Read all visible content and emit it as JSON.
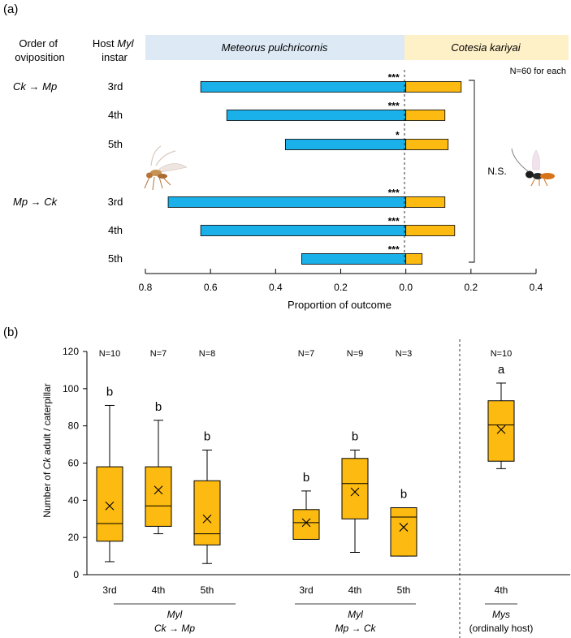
{
  "panel_a_label": "(a)",
  "panel_b_label": "(b)",
  "chart_data": [
    {
      "type": "bar",
      "orientation": "horizontal-diverging",
      "col_header_order": [
        "Order of",
        "oviposition"
      ],
      "col_header_instar": [
        "Host",
        "Myl",
        "instar"
      ],
      "species_left": "Meteorus pulchricornis",
      "species_right": "Cotesia kariyai",
      "species_left_color": "#DDEAF6",
      "species_right_color": "#FEF0C7",
      "sample_note": "N=60 for each",
      "xlabel": "Proportion of outcome",
      "xlim": [
        -0.8,
        0.4
      ],
      "xticks": [
        -0.8,
        -0.6,
        -0.4,
        -0.2,
        0.0,
        0.2,
        0.4
      ],
      "xtick_labels": [
        "0.8",
        "0.6",
        "0.4",
        "0.2",
        "0.0",
        "0.2",
        "0.4"
      ],
      "colors": {
        "mp": "#1AB0EA",
        "ck": "#FDBA10"
      },
      "groups": [
        {
          "order": "Ck → Mp",
          "rows": [
            {
              "instar": "3rd",
              "mp": 0.63,
              "ck": 0.17,
              "sig": "***"
            },
            {
              "instar": "4th",
              "mp": 0.55,
              "ck": 0.12,
              "sig": "***"
            },
            {
              "instar": "5th",
              "mp": 0.37,
              "ck": 0.13,
              "sig": "*"
            }
          ]
        },
        {
          "order": "Mp → Ck",
          "rows": [
            {
              "instar": "3rd",
              "mp": 0.73,
              "ck": 0.12,
              "sig": "***"
            },
            {
              "instar": "4th",
              "mp": 0.63,
              "ck": 0.15,
              "sig": "***"
            },
            {
              "instar": "5th",
              "mp": 0.32,
              "ck": 0.05,
              "sig": "***"
            }
          ]
        }
      ],
      "bracket_label": "N.S."
    },
    {
      "type": "box",
      "ylabel_parts": [
        "Number of ",
        "Ck",
        " adult / caterpillar"
      ],
      "ylim": [
        0,
        120
      ],
      "yticks": [
        0,
        20,
        40,
        60,
        80,
        100,
        120
      ],
      "box_color": "#FDBA10",
      "boxes": [
        {
          "group": 0,
          "label": "3rd",
          "n": "N=10",
          "letter": "b",
          "min": 7,
          "q1": 18,
          "median": 27.5,
          "q3": 58,
          "max": 91,
          "mean": 37
        },
        {
          "group": 0,
          "label": "4th",
          "n": "N=7",
          "letter": "b",
          "min": 22,
          "q1": 26,
          "median": 37,
          "q3": 58,
          "max": 83,
          "mean": 45.5
        },
        {
          "group": 0,
          "label": "5th",
          "n": "N=8",
          "letter": "b",
          "min": 6,
          "q1": 16,
          "median": 22,
          "q3": 50.5,
          "max": 67,
          "mean": 30
        },
        {
          "group": 1,
          "label": "3rd",
          "n": "N=7",
          "letter": "b",
          "min": 19,
          "q1": 19,
          "median": 28,
          "q3": 35,
          "max": 45,
          "mean": 28
        },
        {
          "group": 1,
          "label": "4th",
          "n": "N=9",
          "letter": "b",
          "min": 12,
          "q1": 30,
          "median": 49,
          "q3": 62.5,
          "max": 67,
          "mean": 44.5
        },
        {
          "group": 1,
          "label": "5th",
          "n": "N=3",
          "letter": "b",
          "min": 10,
          "q1": 10,
          "median": 31,
          "q3": 36,
          "max": 36,
          "mean": 25.5
        },
        {
          "group": 2,
          "label": "4th",
          "n": "N=10",
          "letter": "a",
          "min": 57,
          "q1": 61,
          "median": 80.5,
          "q3": 93.5,
          "max": 103,
          "mean": 78
        }
      ],
      "group_labels": [
        {
          "line1": "Myl",
          "line2": "Ck → Mp"
        },
        {
          "line1": "Myl",
          "line2": "Mp → Ck"
        },
        {
          "line1": "Mys",
          "line2": "(ordinally host)"
        }
      ]
    }
  ]
}
